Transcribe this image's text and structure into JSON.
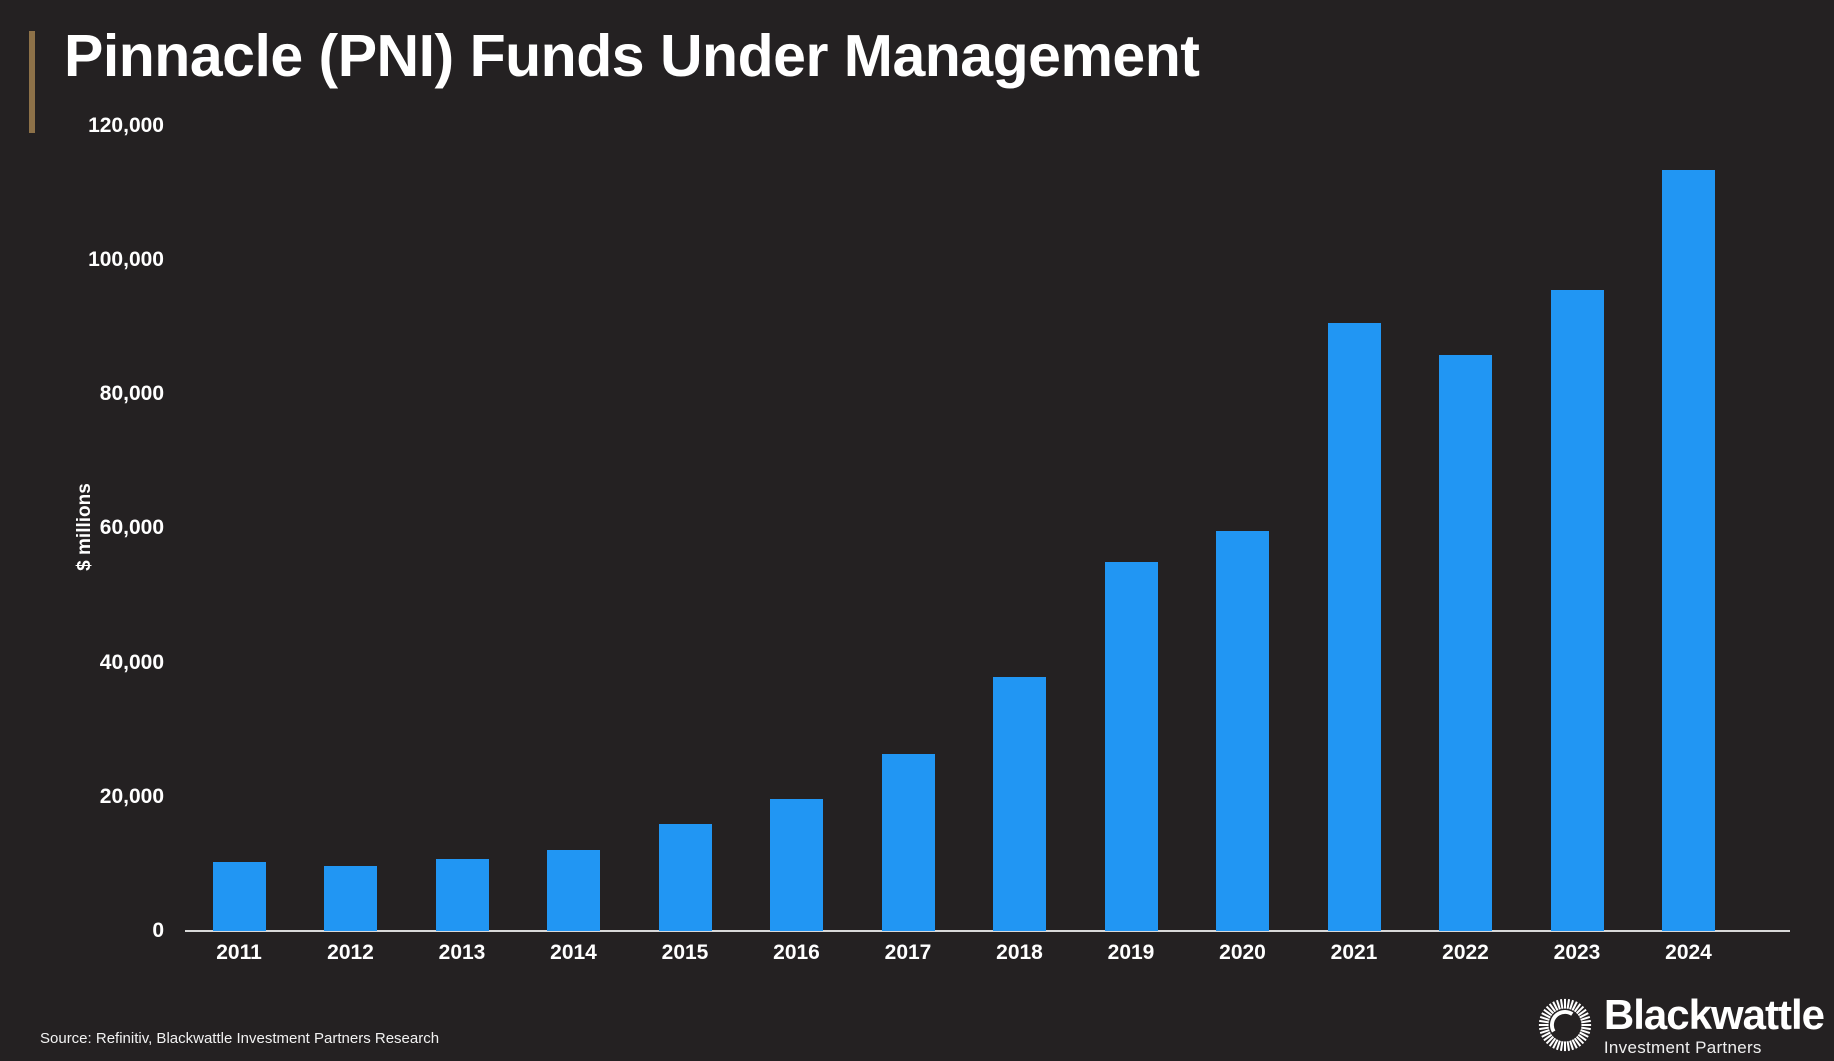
{
  "title": "Pinnacle (PNI) Funds Under Management",
  "chart_data": {
    "type": "bar",
    "title": "Pinnacle (PNI) Funds Under Management",
    "categories": [
      "2011",
      "2012",
      "2013",
      "2014",
      "2015",
      "2016",
      "2017",
      "2018",
      "2019",
      "2020",
      "2021",
      "2022",
      "2023",
      "2024"
    ],
    "values": [
      10300,
      9700,
      10700,
      12100,
      16000,
      19700,
      26400,
      37900,
      54900,
      59600,
      90600,
      85800,
      95500,
      113300
    ],
    "xlabel": "",
    "ylabel": "$ millions",
    "ylim": [
      0,
      120000
    ],
    "ytick_values": [
      0,
      20000,
      40000,
      60000,
      80000,
      100000,
      120000
    ],
    "ytick_labels": [
      "0",
      "20,000",
      "40,000",
      "60,000",
      "80,000",
      "100,000",
      "120,000"
    ],
    "grid": false,
    "legend_position": "none",
    "bar_color": "#2196f3"
  },
  "colors": {
    "background": "#242122",
    "bar": "#2196f3",
    "accent_gold": "#8d7148",
    "axis_line": "#d8d8d8",
    "text": "#ffffff"
  },
  "source_note": "Source: Refinitiv, Blackwattle Investment Partners Research",
  "logo": {
    "name": "Blackwattle",
    "subtitle": "Investment Partners",
    "icon": "starburst-ring-icon"
  }
}
